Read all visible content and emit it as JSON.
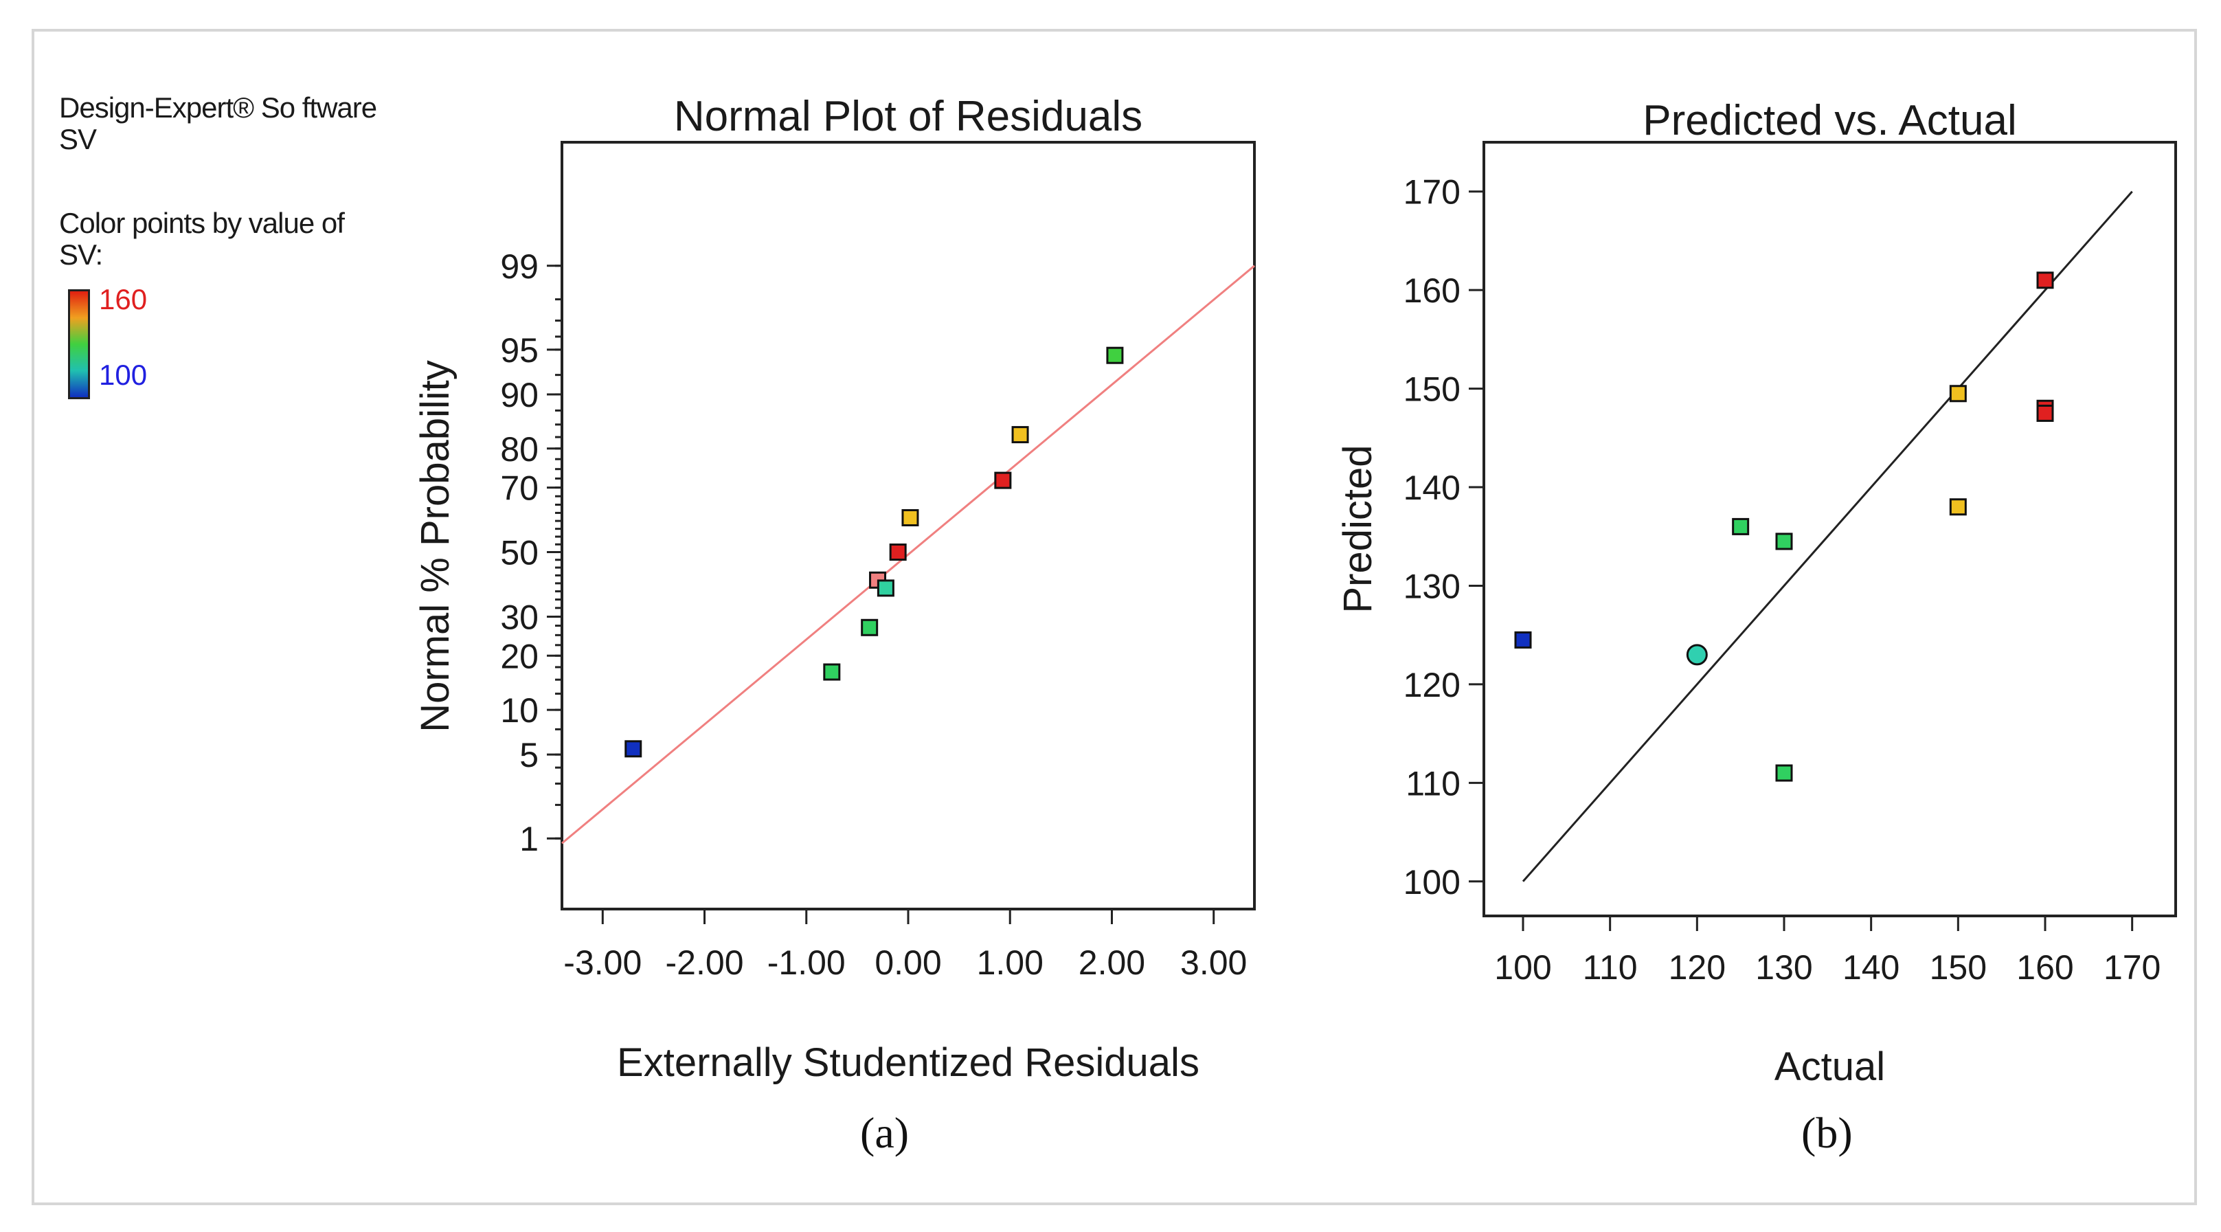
{
  "legend": {
    "software": "Design-Expert® So ftware",
    "response": "SV",
    "color_by_line1": "Color points by value of",
    "color_by_line2": "SV:",
    "high_value": "160",
    "low_value": "100",
    "high_color": "#e02020",
    "low_color": "#2020e0"
  },
  "captions": {
    "a": "(a)",
    "b": "(b)"
  },
  "chart_data": [
    {
      "type": "scatter",
      "title": "Normal Plot of Residuals",
      "xlabel": "Externally Studentized Residuals",
      "ylabel": "Normal % Probability",
      "xlim": [
        -3.4,
        3.4
      ],
      "x_ticks": [
        -3,
        -2,
        -1,
        0,
        1,
        2,
        3
      ],
      "x_tick_labels": [
        "-3.00",
        "-2.00",
        "-1.00",
        "0.00",
        "1.00",
        "2.00",
        "3.00"
      ],
      "y_scale": "normal-probability",
      "y_ticks": [
        1,
        5,
        10,
        20,
        30,
        50,
        70,
        80,
        90,
        95,
        99
      ],
      "y_tick_labels": [
        "1",
        "5",
        "10",
        "20",
        "30",
        "50",
        "70",
        "80",
        "90",
        "95",
        "99"
      ],
      "reference_line": {
        "x": [
          -3.4,
          3.4
        ],
        "p": [
          0.9,
          99.0
        ],
        "color": "#f08080"
      },
      "points": [
        {
          "x": -2.7,
          "p": 5.5,
          "color": "#1030c0"
        },
        {
          "x": -0.75,
          "p": 16.5,
          "color": "#30d060"
        },
        {
          "x": -0.38,
          "p": 27.0,
          "color": "#30d060"
        },
        {
          "x": -0.3,
          "p": 41.0,
          "color": "#f08080"
        },
        {
          "x": -0.22,
          "p": 38.5,
          "color": "#30d0a0"
        },
        {
          "x": -0.1,
          "p": 50.0,
          "color": "#e02020"
        },
        {
          "x": 0.02,
          "p": 61.0,
          "color": "#f0c020"
        },
        {
          "x": 0.93,
          "p": 72.0,
          "color": "#e02020"
        },
        {
          "x": 1.1,
          "p": 83.0,
          "color": "#f0c020"
        },
        {
          "x": 2.03,
          "p": 94.5,
          "color": "#40d040"
        }
      ]
    },
    {
      "type": "scatter",
      "title": "Predicted vs. Actual",
      "xlabel": "Actual",
      "ylabel": "Predicted",
      "xlim": [
        95.5,
        175
      ],
      "ylim": [
        96.5,
        175
      ],
      "x_ticks": [
        100,
        110,
        120,
        130,
        140,
        150,
        160,
        170
      ],
      "y_ticks": [
        100,
        110,
        120,
        130,
        140,
        150,
        160,
        170
      ],
      "reference_line": {
        "x": [
          100,
          170
        ],
        "y": [
          100,
          170
        ],
        "color": "#222222"
      },
      "points": [
        {
          "x": 100,
          "y": 124.5,
          "color": "#1030c0",
          "shape": "square"
        },
        {
          "x": 120,
          "y": 123.0,
          "color": "#30d0b0",
          "shape": "circle"
        },
        {
          "x": 125,
          "y": 136.0,
          "color": "#30d060",
          "shape": "square"
        },
        {
          "x": 130,
          "y": 134.5,
          "color": "#30d060",
          "shape": "square"
        },
        {
          "x": 130,
          "y": 111.0,
          "color": "#30d060",
          "shape": "square"
        },
        {
          "x": 150,
          "y": 149.5,
          "color": "#f0c020",
          "shape": "square"
        },
        {
          "x": 150,
          "y": 138.0,
          "color": "#f0c020",
          "shape": "square"
        },
        {
          "x": 160,
          "y": 161.0,
          "color": "#e02020",
          "shape": "square"
        },
        {
          "x": 160,
          "y": 148.0,
          "color": "#e02020",
          "shape": "square"
        },
        {
          "x": 160,
          "y": 147.5,
          "color": "#e02020",
          "shape": "square"
        }
      ]
    }
  ]
}
